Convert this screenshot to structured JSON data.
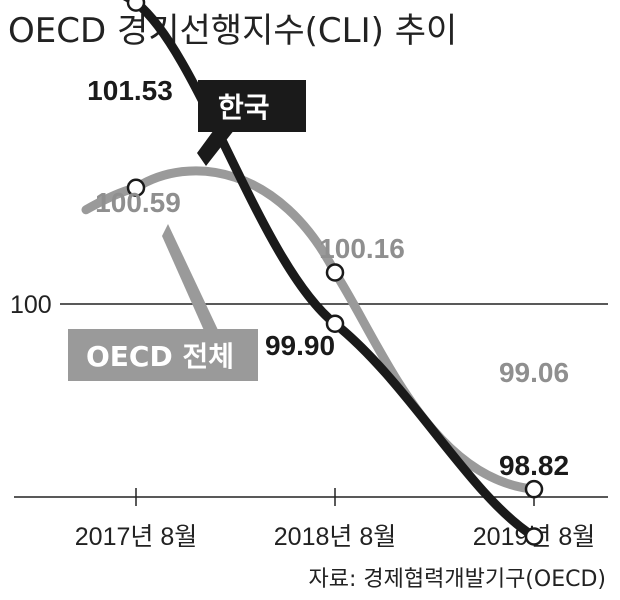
{
  "chart_data": {
    "type": "line",
    "title": "OECD 경기선행지수(CLI) 추이",
    "categories": [
      "2017년 8월",
      "2018년 8월",
      "2019년 8월"
    ],
    "reference_line": {
      "value": 100,
      "label": "100"
    },
    "ylim": [
      98.4,
      102.0
    ],
    "series": [
      {
        "name": "한국",
        "color": "#1a1a1a",
        "values": [
          101.53,
          99.9,
          98.82
        ],
        "labels": [
          "101.53",
          "99.90",
          "98.82"
        ]
      },
      {
        "name": "OECD 전체",
        "color": "#9a9a9a",
        "values": [
          100.59,
          100.16,
          99.06
        ],
        "labels": [
          "100.59",
          "100.16",
          "99.06"
        ]
      }
    ],
    "source": "자료: 경제협력개발기구(OECD)",
    "grid": false,
    "legend": "inline-tags"
  }
}
